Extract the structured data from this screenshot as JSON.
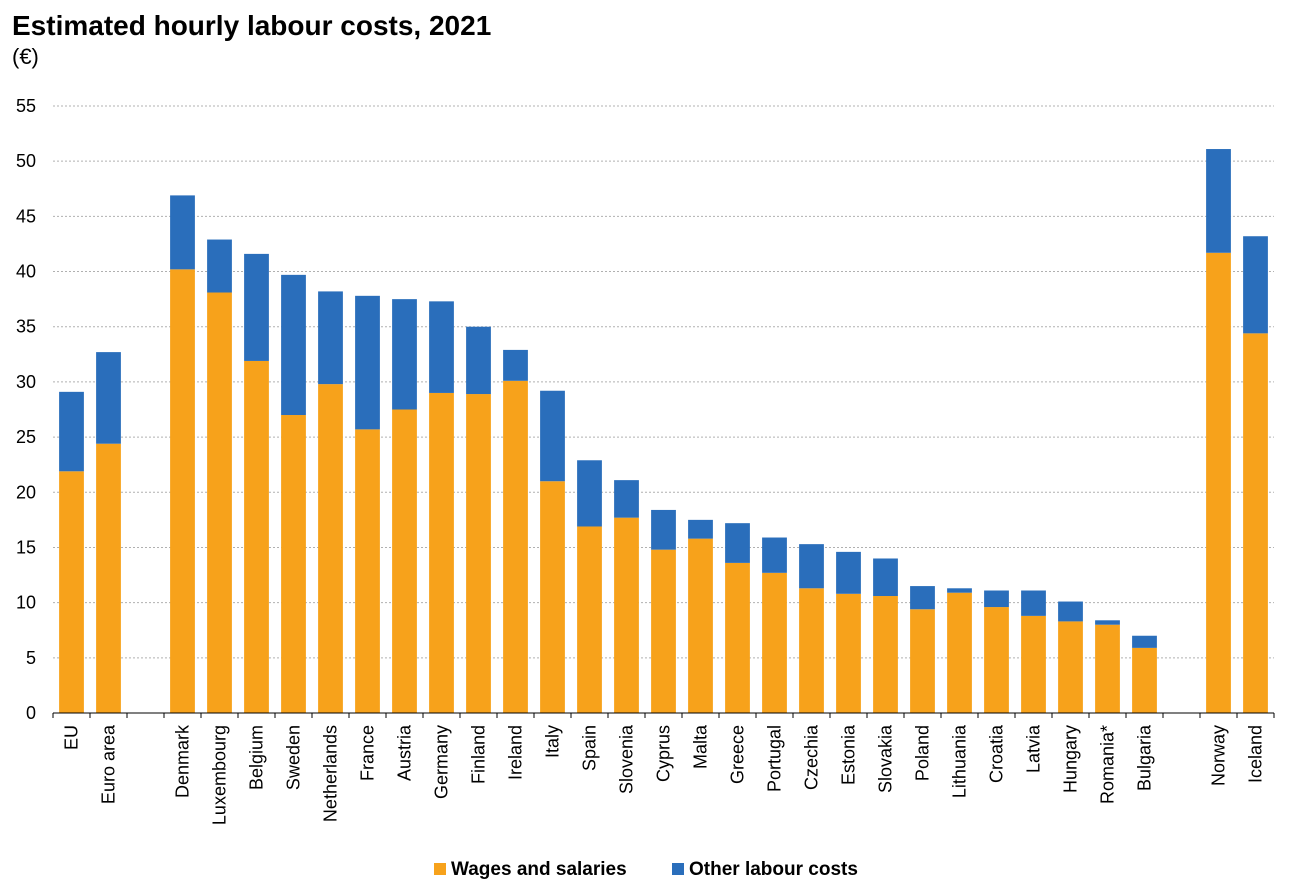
{
  "title": "Estimated hourly labour costs, 2021",
  "unit_label": "(€)",
  "colors": {
    "wages": "#f7a21b",
    "other": "#2a6ebb",
    "grid": "#b0b0b0",
    "axis": "#000000"
  },
  "chart_data": {
    "type": "bar",
    "stacked": true,
    "title": "Estimated hourly labour costs, 2021",
    "ylabel": "(€)",
    "ylim": [
      0,
      55
    ],
    "yticks": [
      0,
      5,
      10,
      15,
      20,
      25,
      30,
      35,
      40,
      45,
      50,
      55
    ],
    "grid": true,
    "legend_position": "bottom",
    "categories": [
      "EU",
      "Euro area",
      "Denmark",
      "Luxembourg",
      "Belgium",
      "Sweden",
      "Netherlands",
      "France",
      "Austria",
      "Germany",
      "Finland",
      "Ireland",
      "Italy",
      "Spain",
      "Slovenia",
      "Cyprus",
      "Malta",
      "Greece",
      "Portugal",
      "Czechia",
      "Estonia",
      "Slovakia",
      "Poland",
      "Lithuania",
      "Croatia",
      "Latvia",
      "Hungary",
      "Romania*",
      "Bulgaria",
      "Norway",
      "Iceland"
    ],
    "series": [
      {
        "name": "Wages and salaries",
        "values": [
          21.9,
          24.4,
          40.2,
          38.1,
          31.9,
          27.0,
          29.8,
          25.7,
          27.5,
          29.0,
          28.9,
          30.1,
          21.0,
          16.9,
          17.7,
          14.8,
          15.8,
          13.6,
          12.7,
          11.3,
          10.8,
          10.6,
          9.4,
          10.9,
          9.6,
          8.8,
          8.3,
          8.0,
          5.9,
          41.7,
          34.4
        ]
      },
      {
        "name": "Other labour costs",
        "values": [
          7.2,
          8.3,
          6.7,
          4.8,
          9.7,
          12.7,
          8.4,
          12.1,
          10.0,
          8.3,
          6.1,
          2.8,
          8.2,
          6.0,
          3.4,
          3.6,
          1.7,
          3.6,
          3.2,
          4.0,
          3.8,
          3.4,
          2.1,
          0.4,
          1.5,
          2.3,
          1.8,
          0.4,
          1.1,
          9.4,
          8.8
        ]
      }
    ]
  }
}
